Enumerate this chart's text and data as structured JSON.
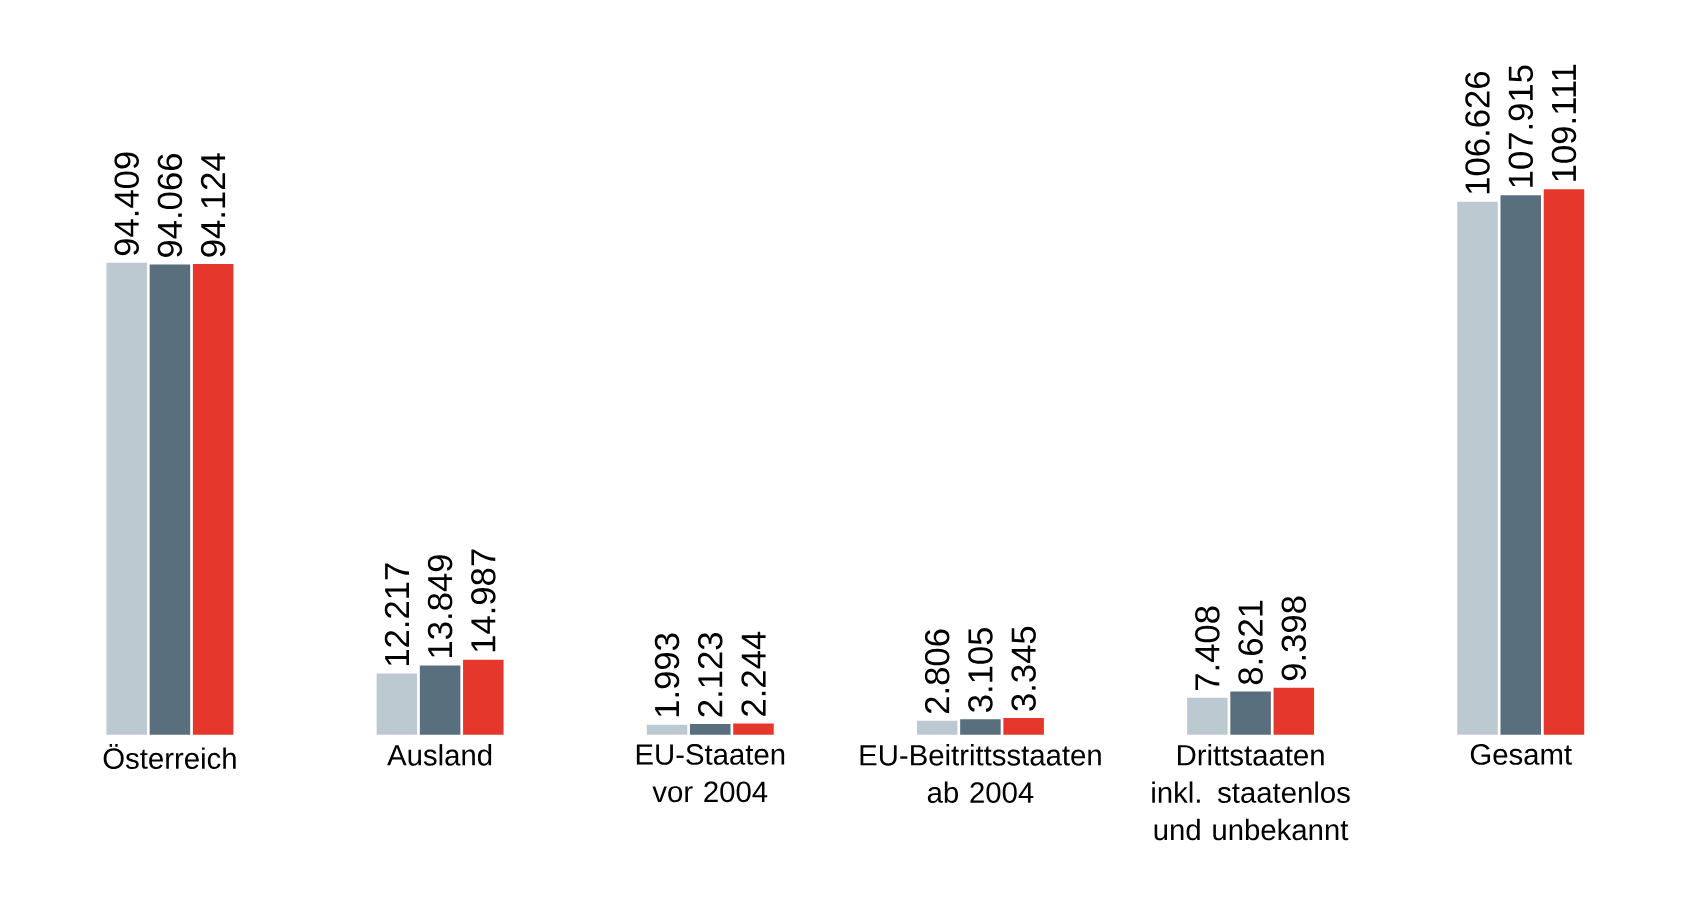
{
  "chart_data": {
    "type": "bar",
    "categories": [
      "Österreich",
      "Ausland",
      "EU-Staaten vor 2004",
      "EU-Beitrittsstaaten ab 2004",
      "Drittstaaten inkl. staatenlos und unbekannt",
      "Gesamt"
    ],
    "series": [
      {
        "color": "#bdc9d1",
        "values": [
          94409,
          12217,
          1993,
          2806,
          7408,
          106626
        ],
        "value_labels": [
          "94.409",
          "12.217",
          "1.993",
          "2.806",
          "7.408",
          "106.626"
        ]
      },
      {
        "color": "#5a6f7d",
        "values": [
          94066,
          13849,
          2123,
          3105,
          8621,
          107915
        ],
        "value_labels": [
          "94.066",
          "13.849",
          "2.123",
          "3.105",
          "8.621",
          "107.915"
        ]
      },
      {
        "color": "#e5372c",
        "values": [
          94124,
          14987,
          2244,
          3345,
          9398,
          109111
        ],
        "value_labels": [
          "94.124",
          "14.987",
          "2.244",
          "3.345",
          "9.398",
          "109.111"
        ]
      }
    ]
  }
}
